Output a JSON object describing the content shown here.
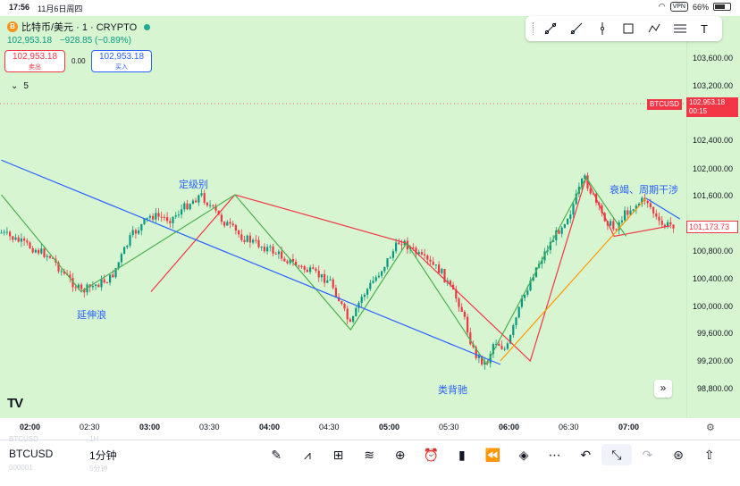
{
  "status_bar": {
    "time": "17:56",
    "date": "11月6日周四",
    "vpn": "VPN",
    "battery": "66%"
  },
  "header": {
    "title": "比特币/美元 · 1 · CRYPTO",
    "coin_icon_letter": "B",
    "last_price": "102,953.18",
    "change": "−928.85 (−0.89%)",
    "sell_price": "102,953.18",
    "sell_label": "卖出",
    "spread": "0.00",
    "buy_price": "102,953.18",
    "buy_label": "买入",
    "indicator_count": "5"
  },
  "toolbar_icons": [
    "trend-line-icon",
    "ray-icon",
    "vertical-line-icon",
    "rectangle-icon",
    "pattern-icon",
    "fib-icon",
    "text-icon"
  ],
  "price_axis": {
    "labels": [
      "103,600.00",
      "103,200.00",
      "102,400.00",
      "102,000.00",
      "101,600.00",
      "100,800.00",
      "100,400.00",
      "100,000.00",
      "99,600.00",
      "99,200.00",
      "98,800.00"
    ],
    "symbol_tag": "BTCUSD",
    "last_price_tag": "102,953.18",
    "countdown": "00:15",
    "current_price_tag": "101,173.73"
  },
  "time_axis": {
    "labels": [
      "02:00",
      "02:30",
      "03:00",
      "03:30",
      "04:00",
      "04:30",
      "05:00",
      "05:30",
      "06:00",
      "06:30",
      "07:00"
    ],
    "bold": [
      true,
      false,
      true,
      false,
      true,
      false,
      true,
      false,
      true,
      false,
      true
    ]
  },
  "annotations": [
    "定级别",
    "延伸浪",
    "类背驰",
    "衰竭、周期干涉"
  ],
  "colors": {
    "background": "#d8f5d2",
    "up": "#089981",
    "down": "#f23645",
    "red_wave": "#f23645",
    "green_wave": "#4caf50",
    "blue_trend": "#2962ff",
    "orange_trend": "#ff9800"
  },
  "chart_data": {
    "type": "candlestick",
    "symbol": "BTCUSD",
    "interval": "1分钟",
    "x_range": [
      "01:45",
      "07:25"
    ],
    "ylim": [
      98600,
      103800
    ],
    "price_path": [
      [
        "01:45",
        101050
      ],
      [
        "02:10",
        100700
      ],
      [
        "02:15",
        100500
      ],
      [
        "02:25",
        100200
      ],
      [
        "02:40",
        100400
      ],
      [
        "02:50",
        101000
      ],
      [
        "03:00",
        101300
      ],
      [
        "03:10",
        101250
      ],
      [
        "03:20",
        101500
      ],
      [
        "03:25",
        101600
      ],
      [
        "03:35",
        101250
      ],
      [
        "03:45",
        101000
      ],
      [
        "04:00",
        100800
      ],
      [
        "04:15",
        100550
      ],
      [
        "04:30",
        100350
      ],
      [
        "04:40",
        99700
      ],
      [
        "04:45",
        100100
      ],
      [
        "04:55",
        100500
      ],
      [
        "05:05",
        100950
      ],
      [
        "05:15",
        100700
      ],
      [
        "05:25",
        100500
      ],
      [
        "05:35",
        100000
      ],
      [
        "05:42",
        99300
      ],
      [
        "05:48",
        99150
      ],
      [
        "05:52",
        99500
      ],
      [
        "05:58",
        99350
      ],
      [
        "06:05",
        100000
      ],
      [
        "06:12",
        100500
      ],
      [
        "06:20",
        100900
      ],
      [
        "06:30",
        101350
      ],
      [
        "06:37",
        101850
      ],
      [
        "06:45",
        101350
      ],
      [
        "06:52",
        101100
      ],
      [
        "06:58",
        101350
      ],
      [
        "07:08",
        101550
      ],
      [
        "07:15",
        101150
      ],
      [
        "07:22",
        101170
      ]
    ],
    "wave_lines": {
      "red": [
        [
          "03:00",
          100200
        ],
        [
          "03:42",
          101600
        ],
        [
          "05:08",
          100900
        ],
        [
          "06:10",
          99200
        ],
        [
          "06:38",
          101850
        ],
        [
          "06:52",
          101000
        ],
        [
          "07:20",
          101150
        ]
      ],
      "green": [
        [
          "01:45",
          101600
        ],
        [
          "02:25",
          100200
        ],
        [
          "03:42",
          101600
        ],
        [
          "04:40",
          99650
        ],
        [
          "05:08",
          100900
        ],
        [
          "05:48",
          99150
        ],
        [
          "06:38",
          101850
        ],
        [
          "06:58",
          101000
        ]
      ],
      "blue": [
        [
          "01:45",
          102100
        ],
        [
          "05:55",
          99150
        ]
      ],
      "blue2": [
        [
          "07:08",
          101550
        ],
        [
          "07:25",
          101250
        ]
      ],
      "orange": [
        [
          "05:55",
          99200
        ],
        [
          "07:08",
          101550
        ]
      ]
    }
  },
  "bottom_bar": {
    "ghost_symbol": "BTCUSD",
    "ghost_interval": "1H",
    "ghost_code": "000001",
    "ghost_interval2": "5分钟",
    "symbol": "BTCUSD",
    "interval": "1分钟",
    "icons": [
      "draw-icon",
      "indicator-icon",
      "layout-icon",
      "ideas-icon",
      "add-icon",
      "alert-icon",
      "candle-type-icon",
      "replay-icon",
      "layers-icon",
      "more-icon",
      "undo-icon",
      "fullscreen-icon",
      "redo-icon",
      "bulb-icon",
      "share-icon"
    ]
  }
}
